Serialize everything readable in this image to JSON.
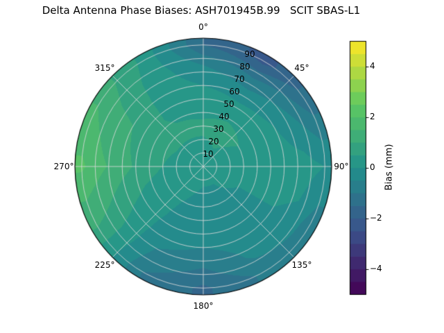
{
  "title": "Delta Antenna Phase Biases: ASH701945B.99   SCIT SBAS-L1",
  "chart_data": {
    "type": "polar_filled_contour",
    "theta_zero": "top",
    "theta_direction": "clockwise",
    "r_max": 95,
    "theta_ticks": [
      {
        "angle_deg": 0,
        "label": "0°"
      },
      {
        "angle_deg": 45,
        "label": "45°"
      },
      {
        "angle_deg": 90,
        "label": "90°"
      },
      {
        "angle_deg": 135,
        "label": "135°"
      },
      {
        "angle_deg": 180,
        "label": "180°"
      },
      {
        "angle_deg": 225,
        "label": "225°"
      },
      {
        "angle_deg": 270,
        "label": "270°"
      },
      {
        "angle_deg": 315,
        "label": "315°"
      }
    ],
    "r_ticks": [
      {
        "zenith_deg": 10,
        "label": "10"
      },
      {
        "zenith_deg": 20,
        "label": "20"
      },
      {
        "zenith_deg": 30,
        "label": "30"
      },
      {
        "zenith_deg": 40,
        "label": "40"
      },
      {
        "zenith_deg": 50,
        "label": "50"
      },
      {
        "zenith_deg": 60,
        "label": "60"
      },
      {
        "zenith_deg": 70,
        "label": "70"
      },
      {
        "zenith_deg": 80,
        "label": "80"
      },
      {
        "zenith_deg": 90,
        "label": "90"
      }
    ],
    "azimuth_deg": [
      0,
      30,
      60,
      90,
      120,
      150,
      180,
      210,
      240,
      270,
      300,
      330,
      360
    ],
    "zenith_deg": [
      0,
      15,
      30,
      45,
      60,
      75,
      90
    ],
    "bias_mm": [
      [
        0.2,
        0.2,
        0.2,
        0.2,
        0.2,
        0.2,
        0.2,
        0.2,
        0.2,
        0.2,
        0.2,
        0.2,
        0.2
      ],
      [
        0.4,
        0.5,
        0.4,
        0.2,
        0.1,
        0.0,
        0.0,
        0.1,
        0.2,
        0.3,
        0.4,
        0.4,
        0.4
      ],
      [
        0.6,
        0.7,
        0.5,
        0.2,
        0.0,
        -0.1,
        -0.2,
        0.0,
        0.2,
        0.5,
        0.6,
        0.6,
        0.6
      ],
      [
        0.3,
        0.3,
        0.2,
        0.1,
        0.0,
        -0.2,
        -0.3,
        -0.1,
        0.3,
        0.8,
        0.7,
        0.4,
        0.3
      ],
      [
        0.0,
        -0.2,
        0.0,
        0.2,
        0.0,
        -0.3,
        -0.5,
        -0.3,
        0.5,
        1.2,
        1.0,
        0.3,
        0.0
      ],
      [
        -0.5,
        -1.0,
        -0.5,
        0.2,
        -0.1,
        -0.4,
        -1.0,
        -0.6,
        0.8,
        1.6,
        1.2,
        0.3,
        -0.5
      ],
      [
        -1.5,
        -2.2,
        -1.2,
        0.0,
        -0.8,
        -0.9,
        -1.6,
        -1.0,
        1.0,
        2.1,
        1.5,
        0.4,
        -1.5
      ]
    ],
    "contour_level_step_mm": 0.5,
    "color_scale": {
      "colormap": "viridis",
      "vmin": -5,
      "vmax": 5,
      "anchors": [
        [
          0.0,
          "#440154"
        ],
        [
          0.25,
          "#3b528b"
        ],
        [
          0.5,
          "#21918c"
        ],
        [
          0.75,
          "#5ec962"
        ],
        [
          1.0,
          "#fde725"
        ]
      ]
    },
    "grid_color": "#d9d9d9",
    "colorbar": {
      "label": "Bias (mm)",
      "ticks": [
        {
          "value": -4,
          "label": "−4"
        },
        {
          "value": -2,
          "label": "−2"
        },
        {
          "value": 0,
          "label": "0"
        },
        {
          "value": 2,
          "label": "2"
        },
        {
          "value": 4,
          "label": "4"
        }
      ]
    }
  }
}
